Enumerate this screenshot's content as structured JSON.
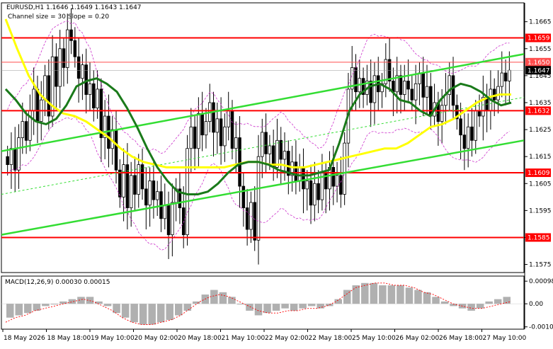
{
  "header": {
    "symbol_line": "EURUSD,H1  1.1646 1.1649 1.1643 1.1647",
    "channel_line": "Channel size = 30 Slope = 0.20"
  },
  "colors": {
    "candle": "#000000",
    "sma_fast": "#1a7a1a",
    "sma_slow": "#ffff00",
    "channel": "#33dd33",
    "level": "#ff0000",
    "bollinger": "#cc33cc",
    "macd_hist": "#b0b0b0",
    "macd_signal": "#ff0000",
    "price_label_bg": "#000000"
  },
  "chart_data": [
    {
      "type": "candlestick",
      "ylim": [
        1.1572,
        1.1672
      ],
      "y_ticks": [
        "1.1665",
        "1.1655",
        "1.1645",
        "1.1635",
        "1.1625",
        "1.1615",
        "1.1605",
        "1.1595",
        "1.1585",
        "1.1575"
      ],
      "x_ticks": [
        "18 May 2026",
        "18 May 18:00",
        "19 May 10:00",
        "20 May 02:00",
        "20 May 18:00",
        "21 May 10:00",
        "22 May 02:00",
        "22 May 18:00",
        "25 May 10:00",
        "26 May 02:00",
        "26 May 18:00",
        "27 May 10:00"
      ],
      "current_price": "1.1647",
      "levels": [
        {
          "label": "1.1659",
          "value": 1.1659,
          "color": "#ff0000"
        },
        {
          "label": "1.1650",
          "value": 1.165,
          "color": "#ff4d4d"
        },
        {
          "label": "1.1632",
          "value": 1.1632,
          "color": "#ff0000"
        },
        {
          "label": "1.1609",
          "value": 1.1609,
          "color": "#ff0000"
        },
        {
          "label": "1.1585",
          "value": 1.1585,
          "color": "#ff0000"
        }
      ],
      "closes": [
        1.1612,
        1.1618,
        1.161,
        1.1622,
        1.1628,
        1.1621,
        1.1632,
        1.164,
        1.1628,
        1.1636,
        1.1645,
        1.163,
        1.1652,
        1.1641,
        1.1655,
        1.1648,
        1.1662,
        1.1658,
        1.1652,
        1.1644,
        1.1649,
        1.1638,
        1.1642,
        1.1633,
        1.164,
        1.1622,
        1.163,
        1.1618,
        1.1625,
        1.161,
        1.16,
        1.1612,
        1.1596,
        1.1608,
        1.1601,
        1.1612,
        1.1603,
        1.1597,
        1.1606,
        1.1599,
        1.1602,
        1.1592,
        1.1597,
        1.1586,
        1.1598,
        1.1603,
        1.1596,
        1.1586,
        1.1618,
        1.1626,
        1.1618,
        1.1631,
        1.1623,
        1.1628,
        1.1635,
        1.1624,
        1.1629,
        1.1619,
        1.1626,
        1.1632,
        1.1618,
        1.1622,
        1.1604,
        1.1596,
        1.1588,
        1.1598,
        1.1584,
        1.1615,
        1.1624,
        1.1616,
        1.1619,
        1.1611,
        1.1621,
        1.1614,
        1.1617,
        1.1608,
        1.1613,
        1.1606,
        1.1611,
        1.1603,
        1.1606,
        1.1597,
        1.1605,
        1.1599,
        1.1609,
        1.1603,
        1.1611,
        1.1604,
        1.1608,
        1.1601,
        1.162,
        1.164,
        1.1648,
        1.1639,
        1.1644,
        1.1638,
        1.1643,
        1.1635,
        1.1645,
        1.1639,
        1.1642,
        1.1651,
        1.1643,
        1.1639,
        1.1645,
        1.1638,
        1.1643,
        1.164,
        1.1636,
        1.1642,
        1.1646,
        1.1637,
        1.1641,
        1.163,
        1.1635,
        1.1628,
        1.1634,
        1.1638,
        1.1645,
        1.1634,
        1.1629,
        1.1623,
        1.1618,
        1.1626,
        1.1621,
        1.1632,
        1.163,
        1.1637,
        1.1632,
        1.164,
        1.1636,
        1.1641,
        1.1646,
        1.1643,
        1.1647
      ],
      "sma_fast": [
        1.164,
        1.1636,
        1.1631,
        1.1628,
        1.1627,
        1.1629,
        1.1634,
        1.1641,
        1.1643,
        1.1644,
        1.1642,
        1.1639,
        1.1633,
        1.1626,
        1.1618,
        1.1611,
        1.1606,
        1.1602,
        1.1601,
        1.1601,
        1.1602,
        1.1605,
        1.1609,
        1.1612,
        1.1613,
        1.1613,
        1.1612,
        1.161,
        1.1609,
        1.1608,
        1.1608,
        1.1609,
        1.161,
        1.162,
        1.1632,
        1.1638,
        1.1641,
        1.1642,
        1.164,
        1.1636,
        1.1635,
        1.1632,
        1.163,
        1.1636,
        1.164,
        1.1642,
        1.1641,
        1.1639,
        1.1636,
        1.1634,
        1.1635
      ],
      "sma_slow": [
        1.1666,
        1.1655,
        1.1645,
        1.1638,
        1.1634,
        1.1631,
        1.163,
        1.1628,
        1.1625,
        1.1622,
        1.1618,
        1.1615,
        1.1613,
        1.1612,
        1.1611,
        1.1611,
        1.1611,
        1.1611,
        1.1611,
        1.1611,
        1.1612,
        1.1613,
        1.1613,
        1.1612,
        1.1612,
        1.1611,
        1.1611,
        1.1612,
        1.1613,
        1.1614,
        1.1615,
        1.1616,
        1.1617,
        1.1618,
        1.1618,
        1.162,
        1.1623,
        1.1626,
        1.1627,
        1.1629,
        1.1632,
        1.1635,
        1.1637,
        1.1638,
        1.1638
      ]
    },
    {
      "type": "macd",
      "title": "MACD(12,26,9) 0.00030 0.00015",
      "ylim": [
        -0.0011,
        0.0012
      ],
      "y_ticks": [
        "0.00098",
        "0.00",
        "-0.00100"
      ],
      "histogram": [
        -0.0006,
        -0.0005,
        -0.0004,
        -0.0003,
        -0.0001,
        0.0,
        0.0001,
        0.0002,
        0.0003,
        0.0003,
        0.0001,
        -0.0001,
        -0.0004,
        -0.0006,
        -0.0008,
        -0.0009,
        -0.0009,
        -0.0008,
        -0.0007,
        -0.0005,
        -0.0003,
        0.0001,
        0.0004,
        0.0006,
        0.0005,
        0.0003,
        0.0,
        -0.0003,
        -0.0005,
        -0.0004,
        -0.0003,
        -0.0002,
        -0.0003,
        -0.0002,
        -0.0001,
        -0.0002,
        -0.0001,
        0.0002,
        0.0006,
        0.0008,
        0.0009,
        0.0009,
        0.0008,
        0.0008,
        0.0008,
        0.0007,
        0.0006,
        0.0005,
        0.0003,
        0.0001,
        -0.0001,
        -0.0002,
        -0.0003,
        -0.0002,
        0.0001,
        0.0002,
        0.0003
      ],
      "signal": [
        -0.0008,
        -0.0006,
        -0.0005,
        -0.0003,
        -0.0002,
        -0.0001,
        0.0,
        0.0001,
        0.0002,
        0.0001,
        -0.0001,
        -0.0003,
        -0.0006,
        -0.0008,
        -0.0009,
        -0.0009,
        -0.0008,
        -0.0007,
        -0.0005,
        -0.0002,
        0.0001,
        0.0003,
        0.0004,
        0.0003,
        0.0001,
        -0.0001,
        -0.0003,
        -0.0004,
        -0.0004,
        -0.0003,
        -0.0003,
        -0.0002,
        -0.0002,
        -0.0001,
        0.0001,
        0.0004,
        0.0007,
        0.0008,
        0.0009,
        0.0009,
        0.0008,
        0.0008,
        0.0007,
        0.0005,
        0.0004,
        0.0002,
        0.0,
        -0.0001,
        -0.0002,
        -0.0002,
        -0.0001,
        0.0,
        0.0001
      ]
    }
  ]
}
